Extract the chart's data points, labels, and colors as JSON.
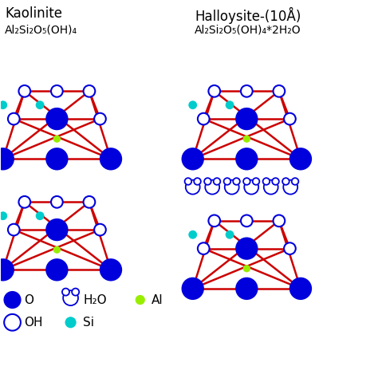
{
  "title_left": "Kaolinite",
  "formula_left": "Al₂Si₂O₅(OH)₄",
  "title_right": "Halloysite-(10Å)",
  "formula_right": "Al₂Si₂O₅(OH)₄*2H₂O",
  "colors": {
    "blue_filled": "#0000DD",
    "blue_open_edge": "#0000DD",
    "cyan": "#00CCCC",
    "green": "#99EE00",
    "red_line": "#CC0000",
    "white": "#FFFFFF",
    "black": "#000000"
  },
  "legend": {
    "O_label": "O",
    "OH_label": "OH",
    "H2O_label": "H₂O",
    "Si_label": "Si",
    "Al_label": "Al"
  },
  "layer": {
    "top_open_r": 0.19,
    "mid_open_r": 0.19,
    "bot_filled_r": 0.34,
    "mid_filled_r": 0.34,
    "al_r": 0.12,
    "si_r": 0.14,
    "lw": 1.8
  }
}
